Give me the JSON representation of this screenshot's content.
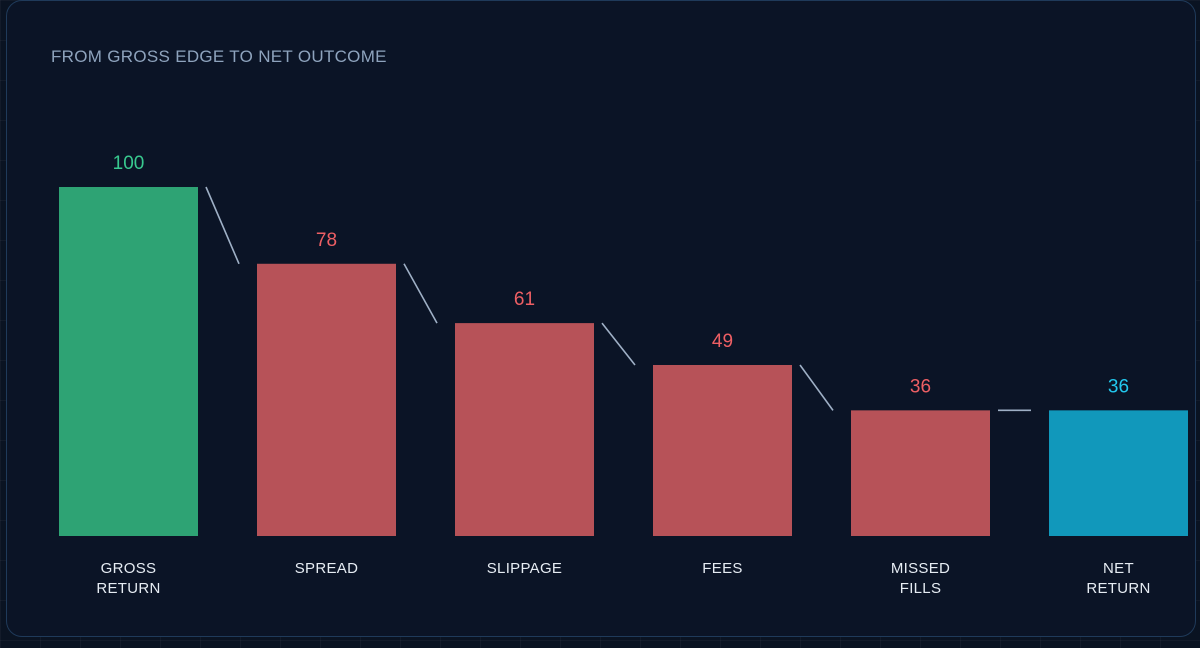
{
  "chart_data": {
    "type": "bar",
    "title": "FROM GROSS EDGE TO NET OUTCOME",
    "categories": [
      [
        "GROSS",
        "RETURN"
      ],
      [
        "SPREAD"
      ],
      [
        "SLIPPAGE"
      ],
      [
        "FEES"
      ],
      [
        "MISSED",
        "FILLS"
      ],
      [
        "NET",
        "RETURN"
      ]
    ],
    "values": [
      100,
      78,
      61,
      49,
      36,
      36
    ],
    "ylim": [
      0,
      100
    ],
    "grid": false,
    "colors": {
      "gross": "#2ea374",
      "cost": "#b75258",
      "net": "#1198bb",
      "gross_label": "#38c98f",
      "cost_label": "#ee5f64",
      "net_label": "#22c8ee",
      "connector": "#9fb0c6"
    }
  }
}
